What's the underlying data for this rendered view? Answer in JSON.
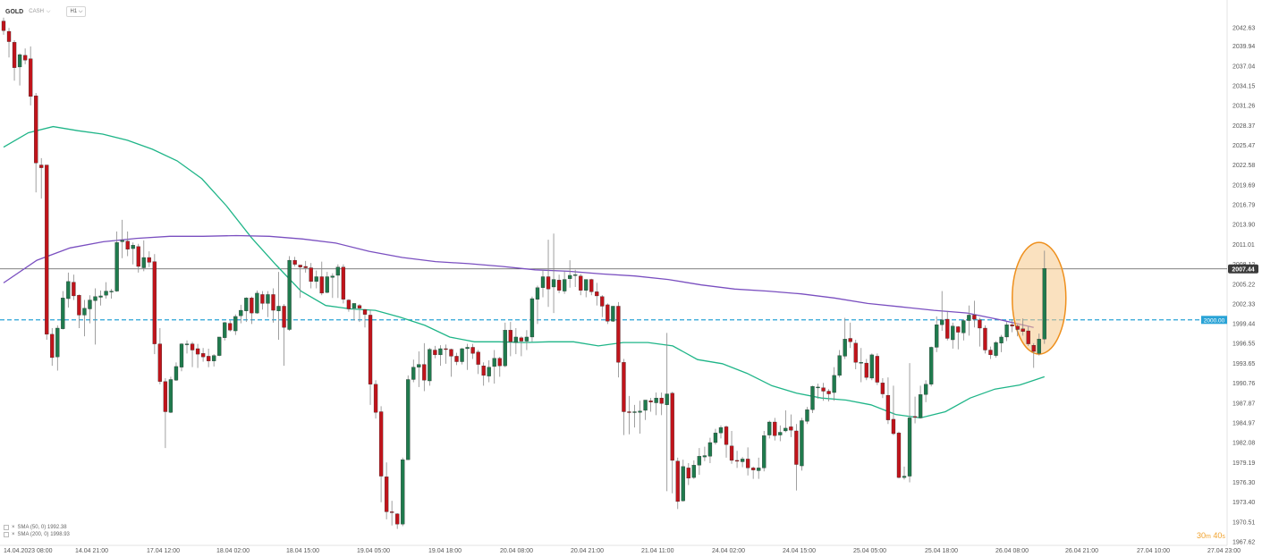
{
  "header": {
    "symbol": "GOLD",
    "symbol_tag": "CASH",
    "timeframe": "H1"
  },
  "legend": [
    {
      "label": "SMA (50, 0) 1992.38"
    },
    {
      "label": "SMA (200, 0) 1998.93"
    }
  ],
  "timer": {
    "value_min": "30",
    "unit_min": "m",
    "value_sec": "40",
    "unit_sec": "s"
  },
  "colors": {
    "bull": "#1f7a4d",
    "bear": "#c0141b",
    "wick": "#888888",
    "sma50": "#1fb588",
    "sma200": "#7a4fc0",
    "level": "#29a3d6",
    "price_line": "#555555",
    "highlight_fill": "#f6c98b",
    "highlight_stroke": "#ee8f1c"
  },
  "chart_data": {
    "type": "candlestick",
    "ylim": [
      1967.62,
      2044.5
    ],
    "y_ticks": [
      "2042.63",
      "2039.94",
      "2037.04",
      "2034.15",
      "2031.26",
      "2028.37",
      "2025.47",
      "2022.58",
      "2019.69",
      "2016.79",
      "2013.90",
      "2011.01",
      "2008.12",
      "2005.22",
      "2002.33",
      "1999.44",
      "1996.55",
      "1993.65",
      "1990.76",
      "1987.87",
      "1984.97",
      "1982.08",
      "1979.19",
      "1976.30",
      "1973.40",
      "1970.51",
      "1967.62"
    ],
    "x_ticks": [
      "14.04.2023 08:00",
      "14.04 21:00",
      "17.04 12:00",
      "18.04 02:00",
      "18.04 15:00",
      "19.04 05:00",
      "19.04 18:00",
      "20.04 08:00",
      "20.04 21:00",
      "21.04 11:00",
      "24.04 02:00",
      "24.04 15:00",
      "25.04 05:00",
      "25.04 18:00",
      "26.04 08:00",
      "26.04 21:00",
      "27.04 10:00",
      "27.04 23:00"
    ],
    "current_price": {
      "label": "2007.44",
      "value": 2007.44
    },
    "level_line": {
      "label": "2000.00",
      "value": 2000.0
    },
    "series": [
      {
        "name": "SMA (50, 0)",
        "values": [
          2025.2,
          2027.3,
          2028.2,
          2027.6,
          2027.1,
          2026.2,
          2024.9,
          2023.2,
          2020.6,
          2016.6,
          2012.0,
          2008.0,
          2004.2,
          2002.1,
          2001.6,
          2001.4,
          2000.4,
          1999.2,
          1997.5,
          1996.8,
          1996.8,
          1996.7,
          1996.8,
          1996.8,
          1996.2,
          1996.7,
          1996.7,
          1996.2,
          1994.2,
          1993.6,
          1992.2,
          1990.4,
          1989.3,
          1988.6,
          1988.3,
          1987.6,
          1986.2,
          1985.7,
          1986.6,
          1988.6,
          1989.9,
          1990.5,
          1991.7
        ]
      },
      {
        "name": "SMA (200, 0)",
        "values": [
          2005.4,
          2008.7,
          2010.5,
          2011.4,
          2011.9,
          2012.2,
          2012.2,
          2012.3,
          2012.2,
          2011.8,
          2011.2,
          2010.0,
          2009.1,
          2008.5,
          2008.2,
          2007.8,
          2007.3,
          2007.1,
          2006.7,
          2006.4,
          2005.9,
          2005.1,
          2004.5,
          2004.2,
          2003.8,
          2003.2,
          2002.4,
          2001.9,
          2001.4,
          2001.0,
          2000.0,
          1998.9
        ]
      }
    ],
    "highlight": {
      "shape": "ellipse",
      "value_top": 2011.3,
      "value_bottom": 1995.0
    },
    "candles": [
      [
        2043.6,
        2044.1,
        2041.6,
        2042.2
      ],
      [
        2042.1,
        2042.6,
        2038.3,
        2040.6
      ],
      [
        2040.5,
        2040.8,
        2034.9,
        2036.8
      ],
      [
        2036.9,
        2038.9,
        2034.2,
        2038.7
      ],
      [
        2038.6,
        2039.6,
        2037.3,
        2037.9
      ],
      [
        2038.1,
        2039.9,
        2031.3,
        2032.6
      ],
      [
        2032.7,
        2033.1,
        2018.6,
        2022.9
      ],
      [
        2022.6,
        2023.6,
        2017.7,
        2022.2
      ],
      [
        2022.6,
        2022.6,
        1997.1,
        1997.9
      ],
      [
        1997.9,
        1998.8,
        1993.3,
        1994.5
      ],
      [
        1994.6,
        1999.2,
        1992.6,
        1998.8
      ],
      [
        1998.7,
        2004.2,
        1998.6,
        2003.2
      ],
      [
        2003.1,
        2006.9,
        2001.8,
        2005.6
      ],
      [
        2005.5,
        2006.6,
        2002.9,
        2003.5
      ],
      [
        2003.6,
        2003.7,
        1998.8,
        2000.7
      ],
      [
        2000.7,
        2002.9,
        1997.6,
        2001.7
      ],
      [
        2001.6,
        2003.6,
        1999.5,
        2002.9
      ],
      [
        2002.8,
        2004.6,
        1996.4,
        2003.4
      ],
      [
        2003.3,
        2004.3,
        2002.1,
        2003.5
      ],
      [
        2003.6,
        2005.5,
        2003.1,
        2004.2
      ],
      [
        2004.2,
        2004.5,
        2003.1,
        2004.2
      ],
      [
        2004.2,
        2012.9,
        2004.1,
        2011.3
      ],
      [
        2011.4,
        2014.6,
        2009.0,
        2011.6
      ],
      [
        2011.5,
        2012.9,
        2009.3,
        2010.3
      ],
      [
        2010.4,
        2011.3,
        2008.1,
        2010.9
      ],
      [
        2010.7,
        2011.1,
        2006.9,
        2007.8
      ],
      [
        2007.6,
        2011.6,
        2007.1,
        2009.1
      ],
      [
        2009.1,
        2010.0,
        2007.7,
        2008.4
      ],
      [
        2008.5,
        2009.6,
        1995.0,
        1996.5
      ],
      [
        1996.5,
        1998.8,
        1990.6,
        1991.0
      ],
      [
        1991.0,
        1991.5,
        1981.3,
        1986.6
      ],
      [
        1986.5,
        1991.7,
        1986.4,
        1991.3
      ],
      [
        1991.2,
        1993.8,
        1991.1,
        1993.2
      ],
      [
        1993.1,
        1996.6,
        1992.5,
        1996.5
      ],
      [
        1996.5,
        1997.0,
        1995.1,
        1996.5
      ],
      [
        1996.5,
        1996.8,
        1993.1,
        1995.6
      ],
      [
        1995.8,
        1996.5,
        1993.0,
        1995.0
      ],
      [
        1995.1,
        1995.9,
        1993.9,
        1994.6
      ],
      [
        1994.7,
        1995.8,
        1993.1,
        1994.0
      ],
      [
        1994.0,
        1995.0,
        1993.2,
        1994.8
      ],
      [
        1994.8,
        1997.5,
        1994.7,
        1997.5
      ],
      [
        1997.4,
        1999.7,
        1997.0,
        1999.6
      ],
      [
        1999.5,
        1999.9,
        1998.3,
        1998.5
      ],
      [
        1998.4,
        2000.8,
        1997.8,
        2000.5
      ],
      [
        2000.6,
        2002.2,
        1999.5,
        2001.4
      ],
      [
        2001.3,
        2003.3,
        1999.7,
        2003.2
      ],
      [
        2003.2,
        2003.4,
        1999.4,
        2001.0
      ],
      [
        2001.0,
        2004.3,
        2000.9,
        2003.9
      ],
      [
        2003.7,
        2004.2,
        2001.5,
        2002.4
      ],
      [
        2002.4,
        2004.2,
        2000.4,
        2003.7
      ],
      [
        2003.7,
        2004.6,
        1999.6,
        2001.4
      ],
      [
        2001.3,
        2007.0,
        1997.1,
        2002.0
      ],
      [
        2002.0,
        2002.3,
        1993.3,
        1998.9
      ],
      [
        1998.6,
        2009.3,
        1998.4,
        2008.7
      ],
      [
        2008.7,
        2009.2,
        2007.8,
        2008.1
      ],
      [
        2008.0,
        2008.0,
        2003.2,
        2007.7
      ],
      [
        2007.8,
        2008.6,
        2006.9,
        2007.6
      ],
      [
        2007.6,
        2008.3,
        2004.6,
        2005.6
      ],
      [
        2005.6,
        2007.2,
        2004.6,
        2006.3
      ],
      [
        2006.3,
        2008.5,
        2003.6,
        2003.9
      ],
      [
        2004.0,
        2007.0,
        2003.9,
        2006.3
      ],
      [
        2006.2,
        2006.8,
        2003.2,
        2006.4
      ],
      [
        2006.5,
        2008.1,
        2003.2,
        2007.7
      ],
      [
        2007.7,
        2008.1,
        2002.4,
        2003.0
      ],
      [
        2002.9,
        2003.0,
        2001.2,
        2001.6
      ],
      [
        2001.7,
        2002.4,
        1999.9,
        2002.4
      ],
      [
        2002.1,
        2002.3,
        1999.7,
        2001.7
      ],
      [
        2001.5,
        2001.6,
        1998.9,
        2000.8
      ],
      [
        2000.7,
        2001.5,
        1987.6,
        1990.6
      ],
      [
        1990.6,
        1991.2,
        1985.6,
        1986.5
      ],
      [
        1986.6,
        1987.4,
        1973.4,
        1977.2
      ],
      [
        1977.1,
        1979.2,
        1970.9,
        1972.0
      ],
      [
        1972.0,
        1973.6,
        1970.0,
        1971.9
      ],
      [
        1971.7,
        1971.8,
        1969.5,
        1970.2
      ],
      [
        1970.2,
        1979.9,
        1969.9,
        1979.6
      ],
      [
        1979.6,
        1991.9,
        1979.6,
        1991.3
      ],
      [
        1991.3,
        1994.2,
        1990.9,
        1993.1
      ],
      [
        1993.1,
        1995.4,
        1990.2,
        1993.5
      ],
      [
        1993.5,
        1996.6,
        1989.6,
        1991.2
      ],
      [
        1991.1,
        1995.9,
        1990.4,
        1995.7
      ],
      [
        1995.6,
        1996.2,
        1994.4,
        1994.9
      ],
      [
        1994.9,
        1996.3,
        1993.3,
        1995.8
      ],
      [
        1995.8,
        1996.4,
        1993.6,
        1995.7
      ],
      [
        1995.7,
        1995.8,
        1991.7,
        1994.7
      ],
      [
        1994.7,
        1995.2,
        1993.4,
        1993.9
      ],
      [
        1993.9,
        1995.9,
        1993.5,
        1995.8
      ],
      [
        1995.8,
        1996.5,
        1992.7,
        1996.0
      ],
      [
        1996.0,
        1996.5,
        1994.3,
        1995.1
      ],
      [
        1995.3,
        1995.6,
        1992.1,
        1993.5
      ],
      [
        1993.3,
        1993.8,
        1990.4,
        1991.9
      ],
      [
        1991.8,
        1994.1,
        1990.9,
        1993.1
      ],
      [
        1993.2,
        1995.6,
        1990.7,
        1994.4
      ],
      [
        1994.4,
        1994.6,
        1991.7,
        1993.3
      ],
      [
        1993.3,
        1999.6,
        1993.1,
        1998.5
      ],
      [
        1998.5,
        1999.7,
        1994.7,
        1996.8
      ],
      [
        1996.7,
        1998.8,
        1995.0,
        1997.5
      ],
      [
        1997.4,
        1997.6,
        1994.7,
        1996.9
      ],
      [
        1996.9,
        1998.5,
        1995.6,
        1997.5
      ],
      [
        1997.5,
        2003.4,
        1996.8,
        2003.1
      ],
      [
        2003.0,
        2005.0,
        1999.4,
        2004.7
      ],
      [
        2004.7,
        2007.3,
        2003.3,
        2006.3
      ],
      [
        2006.3,
        2011.7,
        2001.9,
        2004.5
      ],
      [
        2004.8,
        2012.6,
        2001.0,
        2005.9
      ],
      [
        2005.8,
        2006.6,
        2003.9,
        2004.3
      ],
      [
        2004.2,
        2007.1,
        2003.8,
        2005.9
      ],
      [
        2006.0,
        2008.7,
        2004.7,
        2006.5
      ],
      [
        2006.5,
        2007.3,
        2004.8,
        2006.6
      ],
      [
        2006.4,
        2006.7,
        2003.6,
        2004.3
      ],
      [
        2004.3,
        2005.9,
        2003.3,
        2005.9
      ],
      [
        2005.9,
        2006.0,
        2003.6,
        2004.1
      ],
      [
        2004.1,
        2005.4,
        2002.1,
        2003.5
      ],
      [
        2003.4,
        2003.6,
        2000.4,
        2002.0
      ],
      [
        2002.2,
        2002.4,
        1999.4,
        1999.8
      ],
      [
        1999.8,
        2002.0,
        1999.7,
        2002.0
      ],
      [
        2002.0,
        2002.6,
        1991.6,
        1993.8
      ],
      [
        1993.8,
        1994.3,
        1983.2,
        1986.6
      ],
      [
        1986.6,
        1988.9,
        1983.3,
        1986.5
      ],
      [
        1986.6,
        1987.6,
        1984.3,
        1986.6
      ],
      [
        1986.5,
        1988.2,
        1983.4,
        1986.7
      ],
      [
        1986.8,
        1988.3,
        1985.4,
        1988.3
      ],
      [
        1988.2,
        1988.6,
        1986.6,
        1988.0
      ],
      [
        1987.9,
        1989.4,
        1986.1,
        1988.6
      ],
      [
        1988.6,
        1989.4,
        1986.1,
        1987.8
      ],
      [
        1987.6,
        1998.1,
        1975.0,
        1989.2
      ],
      [
        1989.3,
        1989.5,
        1974.7,
        1979.5
      ],
      [
        1979.4,
        1979.9,
        1972.4,
        1973.5
      ],
      [
        1973.6,
        1979.6,
        1973.5,
        1978.6
      ],
      [
        1978.4,
        1979.1,
        1975.9,
        1976.9
      ],
      [
        1977.0,
        1979.5,
        1976.8,
        1978.8
      ],
      [
        1978.8,
        1981.3,
        1977.4,
        1980.1
      ],
      [
        1980.0,
        1981.5,
        1979.4,
        1980.2
      ],
      [
        1980.1,
        1982.8,
        1979.1,
        1982.1
      ],
      [
        1982.1,
        1984.1,
        1981.8,
        1983.5
      ],
      [
        1983.5,
        1984.6,
        1982.7,
        1984.3
      ],
      [
        1984.4,
        1984.6,
        1979.9,
        1981.8
      ],
      [
        1981.6,
        1983.8,
        1979.0,
        1979.5
      ],
      [
        1979.5,
        1980.9,
        1978.4,
        1979.4
      ],
      [
        1979.3,
        1980.0,
        1978.5,
        1979.7
      ],
      [
        1979.7,
        1981.4,
        1977.3,
        1978.4
      ],
      [
        1978.4,
        1978.6,
        1976.8,
        1978.1
      ],
      [
        1978.0,
        1979.9,
        1976.8,
        1978.4
      ],
      [
        1978.4,
        1983.8,
        1977.9,
        1983.1
      ],
      [
        1983.2,
        1985.3,
        1982.7,
        1985.1
      ],
      [
        1985.1,
        1985.7,
        1982.4,
        1983.1
      ],
      [
        1983.2,
        1984.6,
        1982.3,
        1983.6
      ],
      [
        1983.8,
        1986.8,
        1983.6,
        1984.2
      ],
      [
        1984.4,
        1986.2,
        1982.9,
        1983.9
      ],
      [
        1983.8,
        1984.8,
        1975.1,
        1978.9
      ],
      [
        1978.7,
        1985.7,
        1978.0,
        1985.3
      ],
      [
        1985.2,
        1987.3,
        1984.8,
        1986.9
      ],
      [
        1986.9,
        1990.4,
        1986.4,
        1990.3
      ],
      [
        1990.2,
        1990.7,
        1988.5,
        1990.2
      ],
      [
        1990.1,
        1990.8,
        1988.2,
        1989.6
      ],
      [
        1989.6,
        1989.9,
        1988.1,
        1989.2
      ],
      [
        1989.4,
        1993.1,
        1988.2,
        1991.9
      ],
      [
        1991.9,
        1995.6,
        1991.6,
        1994.8
      ],
      [
        1994.7,
        2000.3,
        1994.3,
        1997.2
      ],
      [
        1997.3,
        1999.6,
        1995.9,
        1996.8
      ],
      [
        1996.6,
        1997.1,
        1992.8,
        1993.8
      ],
      [
        1993.8,
        1995.9,
        1990.9,
        1993.8
      ],
      [
        1993.7,
        1994.3,
        1991.2,
        1991.6
      ],
      [
        1991.5,
        1995.1,
        1991.2,
        1994.9
      ],
      [
        1994.7,
        1995.1,
        1990.5,
        1990.9
      ],
      [
        1990.8,
        1991.5,
        1988.6,
        1989.2
      ],
      [
        1989.0,
        1991.6,
        1984.8,
        1985.4
      ],
      [
        1985.5,
        1990.4,
        1983.2,
        1983.4
      ],
      [
        1983.5,
        1983.7,
        1976.9,
        1977.0
      ],
      [
        1977.0,
        1978.6,
        1976.7,
        1977.2
      ],
      [
        1977.2,
        1993.7,
        1976.3,
        1985.7
      ],
      [
        1985.9,
        1988.8,
        1984.9,
        1985.8
      ],
      [
        1985.7,
        1990.4,
        1985.6,
        1989.1
      ],
      [
        1989.1,
        1991.2,
        1988.0,
        1990.6
      ],
      [
        1990.6,
        1996.1,
        1990.3,
        1996.0
      ],
      [
        1996.0,
        2000.5,
        1995.3,
        1999.3
      ],
      [
        1999.3,
        2004.2,
        1998.4,
        2000.0
      ],
      [
        2000.1,
        2001.3,
        1997.0,
        1997.3
      ],
      [
        1997.1,
        1999.6,
        1995.8,
        1999.1
      ],
      [
        1999.0,
        1999.1,
        1995.7,
        1998.2
      ],
      [
        1998.1,
        2000.1,
        1997.0,
        1999.9
      ],
      [
        1999.9,
        2002.1,
        1997.7,
        2000.7
      ],
      [
        2000.7,
        2002.8,
        1998.9,
        2000.1
      ],
      [
        2000.0,
        2000.3,
        1996.1,
        1998.8
      ],
      [
        1998.8,
        1999.2,
        1995.1,
        1995.6
      ],
      [
        1995.6,
        1996.1,
        1994.3,
        1994.9
      ],
      [
        1994.8,
        1996.9,
        1994.5,
        1996.7
      ],
      [
        1996.6,
        1997.8,
        1995.3,
        1997.5
      ],
      [
        1997.5,
        1999.7,
        1996.9,
        1999.3
      ],
      [
        1999.3,
        2000.1,
        1998.2,
        1999.1
      ],
      [
        1999.1,
        1999.3,
        1997.6,
        1998.6
      ],
      [
        1998.7,
        2000.2,
        1997.7,
        1998.3
      ],
      [
        1998.4,
        1999.0,
        1996.2,
        1996.5
      ],
      [
        1996.3,
        1996.6,
        1993.0,
        1995.4
      ],
      [
        1995.1,
        1998.0,
        1994.8,
        1997.2
      ],
      [
        1997.2,
        2010.1,
        1996.5,
        2007.5
      ]
    ]
  }
}
